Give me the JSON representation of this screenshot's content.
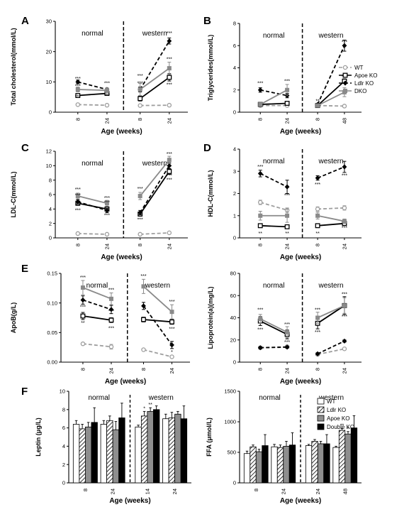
{
  "colors": {
    "wt": "#9e9e9e",
    "apoe": "#000000",
    "ldlr": "#000000",
    "dko": "#8a8a8a"
  },
  "chart_data": [
    {
      "id": "A",
      "type": "line",
      "panel_label": "A",
      "ylabel": "Total cholesterol(mmol/L)",
      "xlabel": "Age (weeks)",
      "ylim": [
        0,
        30
      ],
      "yticks": [
        "0",
        "10",
        "20",
        "30"
      ],
      "groups": [
        {
          "label": "normal",
          "x": [
            "8",
            "24"
          ]
        },
        {
          "label": "western",
          "x": [
            "8",
            "24"
          ]
        }
      ],
      "legend": [],
      "series": [
        {
          "key": "wt",
          "values": [
            2.5,
            2.3,
            2.2,
            2.3
          ],
          "err": [
            0.3,
            0.3,
            0.3,
            0.3
          ]
        },
        {
          "key": "apoe",
          "values": [
            5.5,
            6.2,
            4.5,
            11.5
          ],
          "err": [
            0.5,
            0.6,
            0.8,
            1.2
          ]
        },
        {
          "key": "ldlr",
          "values": [
            10,
            7.5,
            7.5,
            23.5
          ],
          "err": [
            0.6,
            0.5,
            0.8,
            1.0
          ]
        },
        {
          "key": "dko",
          "values": [
            7.5,
            7.2,
            7.5,
            14.5
          ],
          "err": [
            0.8,
            0.8,
            2.0,
            2.0
          ]
        }
      ],
      "annotations": [
        {
          "i": 0,
          "v": 11,
          "text": "***"
        },
        {
          "i": 0,
          "v": 8.5,
          "text": "***"
        },
        {
          "i": 0,
          "v": 5,
          "text": "***"
        },
        {
          "i": 1,
          "v": 9.5,
          "text": "***"
        },
        {
          "i": 1,
          "v": 5.5,
          "text": "***"
        },
        {
          "i": 2,
          "v": 12,
          "text": "***"
        },
        {
          "i": 2,
          "v": 9.5,
          "text": "***"
        },
        {
          "i": 3,
          "v": 26,
          "text": "***"
        },
        {
          "i": 3,
          "v": 17.5,
          "text": "***"
        },
        {
          "i": 3,
          "v": 9,
          "text": "***"
        }
      ]
    },
    {
      "id": "B",
      "type": "line",
      "panel_label": "B",
      "ylabel": "Triglycerides(mmol/L)",
      "xlabel": "Age (weeks)",
      "ylim": [
        0,
        8
      ],
      "yticks": [
        "0",
        "2",
        "4",
        "6",
        "8"
      ],
      "groups": [
        {
          "label": "normal",
          "x": [
            "8",
            "24"
          ]
        },
        {
          "label": "western",
          "x": [
            "8",
            "48"
          ]
        }
      ],
      "legend": [
        {
          "key": "wt",
          "label": "WT"
        },
        {
          "key": "apoe",
          "label": "Apoe KO"
        },
        {
          "key": "ldlr",
          "label": "Ldlr KO"
        },
        {
          "key": "dko",
          "label": "DKO"
        }
      ],
      "series": [
        {
          "key": "wt",
          "values": [
            0.6,
            0.6,
            0.6,
            0.55
          ],
          "err": [
            0.1,
            0.1,
            0.1,
            0.1
          ]
        },
        {
          "key": "apoe",
          "values": [
            0.7,
            0.8,
            0.6,
            2.8
          ],
          "err": [
            0.1,
            0.1,
            0.1,
            0.2
          ]
        },
        {
          "key": "ldlr",
          "values": [
            2.0,
            1.5,
            0.7,
            6.0
          ],
          "err": [
            0.2,
            0.2,
            0.1,
            0.5
          ]
        },
        {
          "key": "dko",
          "values": [
            0.7,
            2.0,
            0.6,
            1.8
          ],
          "err": [
            0.1,
            0.5,
            0.1,
            0.4
          ]
        }
      ],
      "annotations": [
        {
          "i": 0,
          "v": 2.6,
          "text": "***"
        },
        {
          "i": 1,
          "v": 2.8,
          "text": "***"
        },
        {
          "i": 1,
          "v": 1.4,
          "text": "**"
        },
        {
          "i": 2,
          "v": 1.0,
          "text": "**"
        },
        {
          "i": 3,
          "v": 6.3,
          "text": "***"
        },
        {
          "i": 3,
          "v": 3.2,
          "text": "***"
        }
      ]
    },
    {
      "id": "C",
      "type": "line",
      "panel_label": "C",
      "ylabel": "LDL-C(mmol/L)",
      "xlabel": "Age (weeks)",
      "ylim": [
        0,
        12
      ],
      "yticks": [
        "0",
        "2",
        "4",
        "6",
        "8",
        "10",
        "12"
      ],
      "groups": [
        {
          "label": "normal",
          "x": [
            "8",
            "24"
          ]
        },
        {
          "label": "western",
          "x": [
            "8",
            "24"
          ]
        }
      ],
      "legend": [],
      "series": [
        {
          "key": "wt",
          "values": [
            0.6,
            0.5,
            0.5,
            0.7
          ],
          "err": [
            0.1,
            0.1,
            0.1,
            0.1
          ]
        },
        {
          "key": "apoe",
          "values": [
            4.8,
            4.0,
            3.3,
            9.2
          ],
          "err": [
            0.3,
            0.3,
            0.3,
            0.4
          ]
        },
        {
          "key": "ldlr",
          "values": [
            5.0,
            3.8,
            3.5,
            10.0
          ],
          "err": [
            0.3,
            0.3,
            0.3,
            0.4
          ]
        },
        {
          "key": "dko",
          "values": [
            5.8,
            4.8,
            5.8,
            10.8
          ],
          "err": [
            0.4,
            0.4,
            0.5,
            0.5
          ]
        }
      ],
      "annotations": [
        {
          "i": 0,
          "v": 6.7,
          "text": "***"
        },
        {
          "i": 0,
          "v": 5.9,
          "text": "***"
        },
        {
          "i": 0,
          "v": 3.8,
          "text": "***"
        },
        {
          "i": 1,
          "v": 5.5,
          "text": "***"
        },
        {
          "i": 1,
          "v": 4.9,
          "text": "***"
        },
        {
          "i": 1,
          "v": 3.1,
          "text": "***"
        },
        {
          "i": 2,
          "v": 6.8,
          "text": "***"
        },
        {
          "i": 2,
          "v": 2.5,
          "text": "***"
        },
        {
          "i": 3,
          "v": 11.6,
          "text": "***"
        },
        {
          "i": 3,
          "v": 8.6,
          "text": "***"
        },
        {
          "i": 3,
          "v": 8.0,
          "text": "***"
        }
      ]
    },
    {
      "id": "D",
      "type": "line",
      "panel_label": "D",
      "ylabel": "HDL-C(mmol/L)",
      "xlabel": "Age (weeks)",
      "ylim": [
        0,
        4
      ],
      "yticks": [
        "0",
        "1",
        "2",
        "3",
        "4"
      ],
      "groups": [
        {
          "label": "normal",
          "x": [
            "8",
            "24"
          ]
        },
        {
          "label": "western",
          "x": [
            "8",
            "24"
          ]
        }
      ],
      "legend": [],
      "series": [
        {
          "key": "wt",
          "values": [
            1.6,
            1.25,
            1.3,
            1.35
          ],
          "err": [
            0.1,
            0.1,
            0.1,
            0.1
          ]
        },
        {
          "key": "apoe",
          "values": [
            0.55,
            0.5,
            0.55,
            0.65
          ],
          "err": [
            0.05,
            0.05,
            0.05,
            0.05
          ]
        },
        {
          "key": "ldlr",
          "values": [
            2.9,
            2.3,
            2.7,
            3.2
          ],
          "err": [
            0.15,
            0.3,
            0.1,
            0.25
          ]
        },
        {
          "key": "dko",
          "values": [
            1.0,
            1.0,
            1.0,
            0.75
          ],
          "err": [
            0.2,
            0.3,
            0.15,
            0.1
          ]
        }
      ],
      "annotations": [
        {
          "i": 0,
          "v": 3.2,
          "text": "***"
        },
        {
          "i": 0,
          "v": 0.2,
          "text": "**"
        },
        {
          "i": 1,
          "v": 1.9,
          "text": "***"
        },
        {
          "i": 1,
          "v": 0.2,
          "text": "**"
        },
        {
          "i": 2,
          "v": 2.4,
          "text": "***"
        },
        {
          "i": 2,
          "v": 0.2,
          "text": "**"
        },
        {
          "i": 3,
          "v": 2.8,
          "text": "***"
        },
        {
          "i": 3,
          "v": 0.45,
          "text": "***"
        }
      ]
    },
    {
      "id": "E1",
      "type": "line",
      "panel_label": "E",
      "ylabel": "ApoB(g/L)",
      "xlabel": "Age (weeks)",
      "ylim": [
        0,
        0.15
      ],
      "yticks": [
        "0.00",
        "0.05",
        "0.10",
        "0.15"
      ],
      "groups": [
        {
          "label": "normal",
          "x": [
            "8",
            "24"
          ]
        },
        {
          "label": "western",
          "x": [
            "8",
            "24"
          ]
        }
      ],
      "legend": [],
      "series": [
        {
          "key": "wt",
          "values": [
            0.031,
            0.026,
            0.021,
            0.009
          ],
          "err": [
            0.002,
            0.004,
            0.002,
            0.002
          ]
        },
        {
          "key": "apoe",
          "values": [
            0.078,
            0.071,
            0.072,
            0.068
          ],
          "err": [
            0.006,
            0.004,
            0.004,
            0.004
          ]
        },
        {
          "key": "ldlr",
          "values": [
            0.105,
            0.089,
            0.095,
            0.029
          ],
          "err": [
            0.007,
            0.007,
            0.006,
            0.006
          ]
        },
        {
          "key": "dko",
          "values": [
            0.126,
            0.107,
            0.128,
            0.085
          ],
          "err": [
            0.012,
            0.01,
            0.012,
            0.012
          ]
        }
      ],
      "annotations": [
        {
          "i": 0,
          "v": 0.143,
          "text": "***"
        },
        {
          "i": 0,
          "v": 0.093,
          "text": "***"
        },
        {
          "i": 0,
          "v": 0.066,
          "text": "**"
        },
        {
          "i": 1,
          "v": 0.122,
          "text": "***"
        },
        {
          "i": 1,
          "v": 0.086,
          "text": "***"
        },
        {
          "i": 1,
          "v": 0.057,
          "text": "***"
        },
        {
          "i": 2,
          "v": 0.145,
          "text": "***"
        },
        {
          "i": 3,
          "v": 0.102,
          "text": "***"
        },
        {
          "i": 3,
          "v": 0.056,
          "text": "***"
        },
        {
          "i": 3,
          "v": 0.017,
          "text": "*"
        }
      ]
    },
    {
      "id": "E2",
      "type": "line",
      "panel_label": "",
      "ylabel": "Lipoprotein(a)(mg/L)",
      "xlabel": "Age (weeks)",
      "ylim": [
        0,
        80
      ],
      "yticks": [
        "0",
        "20",
        "40",
        "60",
        "80"
      ],
      "groups": [
        {
          "label": "normal",
          "x": [
            "8",
            "24"
          ]
        },
        {
          "label": "western",
          "x": [
            "8",
            "24"
          ]
        }
      ],
      "legend": [],
      "series": [
        {
          "key": "wt",
          "values": [
            13,
            14,
            7,
            12
          ],
          "err": [
            1,
            1,
            1,
            1
          ]
        },
        {
          "key": "apoe",
          "values": [
            37,
            25,
            35,
            51
          ],
          "err": [
            4,
            4,
            5,
            8
          ]
        },
        {
          "key": "ldlr",
          "values": [
            13,
            13.5,
            7.5,
            19
          ],
          "err": [
            1,
            1,
            1,
            1
          ]
        },
        {
          "key": "dko",
          "values": [
            39,
            27,
            40,
            51
          ],
          "err": [
            4,
            5,
            5,
            7
          ]
        }
      ],
      "annotations": [
        {
          "i": 0,
          "v": 47,
          "text": "***"
        },
        {
          "i": 0,
          "v": 29,
          "text": "***"
        },
        {
          "i": 1,
          "v": 34,
          "text": "***"
        },
        {
          "i": 1,
          "v": 18,
          "text": "***"
        },
        {
          "i": 2,
          "v": 47,
          "text": "***"
        },
        {
          "i": 2,
          "v": 27,
          "text": "***"
        },
        {
          "i": 3,
          "v": 61,
          "text": "***"
        },
        {
          "i": 3,
          "v": 41,
          "text": "***"
        }
      ]
    },
    {
      "id": "F1",
      "type": "bar",
      "panel_label": "F",
      "ylabel": "Leptin (μg/L)",
      "xlabel": "Age (weeks)",
      "ylim": [
        0,
        10
      ],
      "yticks": [
        "0",
        "2",
        "4",
        "6",
        "8",
        "10"
      ],
      "categories": [
        "8",
        "24",
        "14",
        "24"
      ],
      "group_labels": [
        {
          "label": "normal",
          "span": [
            0,
            1
          ]
        },
        {
          "label": "western",
          "span": [
            2,
            3
          ]
        }
      ],
      "legend": [],
      "series": [
        {
          "key": "wt",
          "values": [
            6.4,
            6.4,
            6.1,
            7.0
          ],
          "err": [
            0.4,
            0.4,
            0.2,
            0.5
          ]
        },
        {
          "key": "ldlr",
          "values": [
            5.9,
            6.8,
            7.3,
            7.1
          ],
          "err": [
            0.5,
            0.5,
            0.5,
            0.6
          ]
        },
        {
          "key": "apoe",
          "values": [
            6.1,
            5.8,
            7.8,
            7.5
          ],
          "err": [
            0.5,
            0.9,
            0.4,
            0.3
          ]
        },
        {
          "key": "dko",
          "values": [
            6.6,
            7.1,
            8.0,
            7.0
          ],
          "err": [
            1.6,
            1.6,
            0.4,
            1.4
          ]
        }
      ],
      "annotations": [
        {
          "cat": 2,
          "s": 1,
          "text": "*"
        },
        {
          "cat": 2,
          "s": 2,
          "text": "**"
        }
      ]
    },
    {
      "id": "F2",
      "type": "bar",
      "panel_label": "",
      "ylabel": "FFA (μmol/L)",
      "xlabel": "Age (weeks)",
      "ylim": [
        0,
        1500
      ],
      "yticks": [
        "0",
        "500",
        "1000",
        "1500"
      ],
      "categories": [
        "8",
        "24",
        "24",
        "48"
      ],
      "group_labels": [
        {
          "label": "normal",
          "span": [
            0,
            1
          ]
        },
        {
          "label": "western",
          "span": [
            2,
            3
          ]
        }
      ],
      "legend": [
        {
          "key": "wt",
          "label": "WT"
        },
        {
          "key": "ldlr",
          "label": "Ldlr KO"
        },
        {
          "key": "apoe",
          "label": "Apoe KO"
        },
        {
          "key": "dko",
          "label": "Double KO"
        }
      ],
      "series": [
        {
          "key": "wt",
          "values": [
            480,
            590,
            610,
            580
          ],
          "err": [
            40,
            40,
            20,
            20
          ]
        },
        {
          "key": "ldlr",
          "values": [
            590,
            580,
            680,
            860
          ],
          "err": [
            30,
            40,
            30,
            30
          ]
        },
        {
          "key": "apoe",
          "values": [
            510,
            600,
            640,
            800
          ],
          "err": [
            40,
            80,
            40,
            40
          ]
        },
        {
          "key": "dko",
          "values": [
            610,
            620,
            640,
            900
          ],
          "err": [
            180,
            200,
            150,
            200
          ]
        }
      ],
      "annotations": [
        {
          "cat": 3,
          "s": 1,
          "text": "**"
        },
        {
          "cat": 3,
          "s": 2,
          "text": "*"
        }
      ]
    }
  ]
}
